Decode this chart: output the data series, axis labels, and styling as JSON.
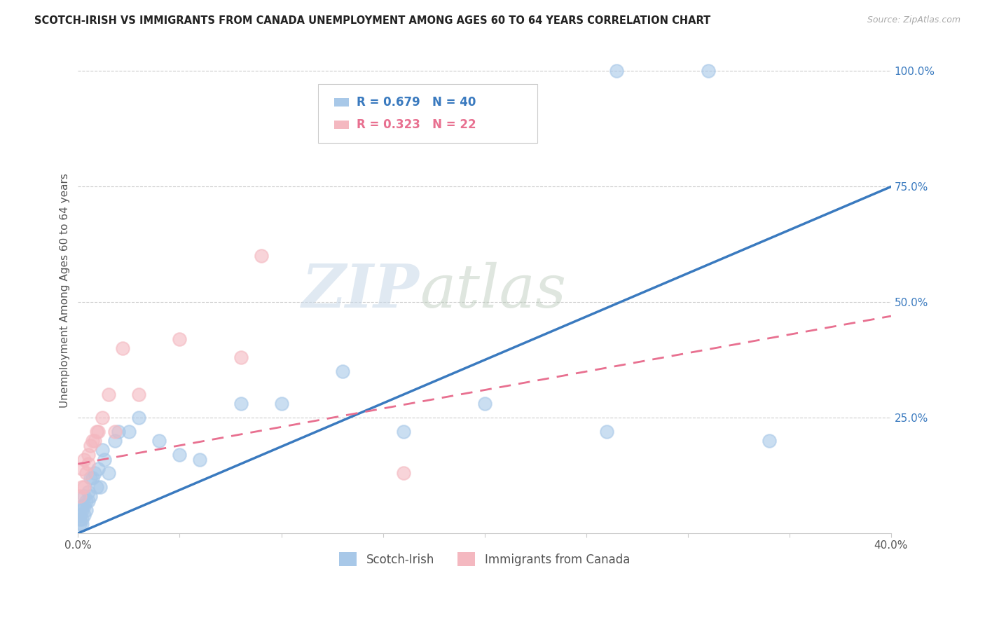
{
  "title": "SCOTCH-IRISH VS IMMIGRANTS FROM CANADA UNEMPLOYMENT AMONG AGES 60 TO 64 YEARS CORRELATION CHART",
  "source": "Source: ZipAtlas.com",
  "ylabel": "Unemployment Among Ages 60 to 64 years",
  "xlim": [
    0.0,
    0.4
  ],
  "ylim": [
    0.0,
    1.05
  ],
  "xticks": [
    0.0,
    0.05,
    0.1,
    0.15,
    0.2,
    0.25,
    0.3,
    0.35,
    0.4
  ],
  "xtick_labels": [
    "0.0%",
    "",
    "",
    "",
    "",
    "",
    "",
    "",
    "40.0%"
  ],
  "ytick_labels_right": [
    "25.0%",
    "50.0%",
    "75.0%",
    "100.0%"
  ],
  "yticks_right": [
    0.25,
    0.5,
    0.75,
    1.0
  ],
  "watermark_zip": "ZIP",
  "watermark_atlas": "atlas",
  "legend_blue_R": "R = 0.679",
  "legend_blue_N": "N = 40",
  "legend_pink_R": "R = 0.323",
  "legend_pink_N": "N = 22",
  "blue_scatter_color": "#a8c8e8",
  "pink_scatter_color": "#f4b8c0",
  "blue_line_color": "#3a7abf",
  "pink_line_color": "#e87090",
  "scotch_irish_x": [
    0.001,
    0.001,
    0.001,
    0.002,
    0.002,
    0.002,
    0.002,
    0.003,
    0.003,
    0.003,
    0.004,
    0.004,
    0.005,
    0.005,
    0.006,
    0.006,
    0.007,
    0.008,
    0.009,
    0.01,
    0.011,
    0.012,
    0.013,
    0.015,
    0.018,
    0.02,
    0.025,
    0.03,
    0.04,
    0.05,
    0.06,
    0.08,
    0.1,
    0.13,
    0.16,
    0.2,
    0.26,
    0.31,
    0.265,
    0.34
  ],
  "scotch_irish_y": [
    0.02,
    0.03,
    0.04,
    0.02,
    0.03,
    0.05,
    0.06,
    0.04,
    0.06,
    0.08,
    0.05,
    0.07,
    0.07,
    0.09,
    0.08,
    0.12,
    0.12,
    0.13,
    0.1,
    0.14,
    0.1,
    0.18,
    0.16,
    0.13,
    0.2,
    0.22,
    0.22,
    0.25,
    0.2,
    0.17,
    0.16,
    0.28,
    0.28,
    0.35,
    0.22,
    0.28,
    0.22,
    1.0,
    1.0,
    0.2
  ],
  "canada_x": [
    0.001,
    0.002,
    0.002,
    0.003,
    0.003,
    0.004,
    0.005,
    0.005,
    0.006,
    0.007,
    0.008,
    0.009,
    0.01,
    0.012,
    0.015,
    0.018,
    0.022,
    0.03,
    0.05,
    0.08,
    0.09,
    0.16
  ],
  "canada_y": [
    0.08,
    0.1,
    0.14,
    0.1,
    0.16,
    0.13,
    0.15,
    0.17,
    0.19,
    0.2,
    0.2,
    0.22,
    0.22,
    0.25,
    0.3,
    0.22,
    0.4,
    0.3,
    0.42,
    0.38,
    0.6,
    0.13
  ],
  "blue_trend_x": [
    0.0,
    0.4
  ],
  "blue_trend_y": [
    0.0,
    0.75
  ],
  "pink_trend_x": [
    0.0,
    0.4
  ],
  "pink_trend_y": [
    0.15,
    0.47
  ]
}
